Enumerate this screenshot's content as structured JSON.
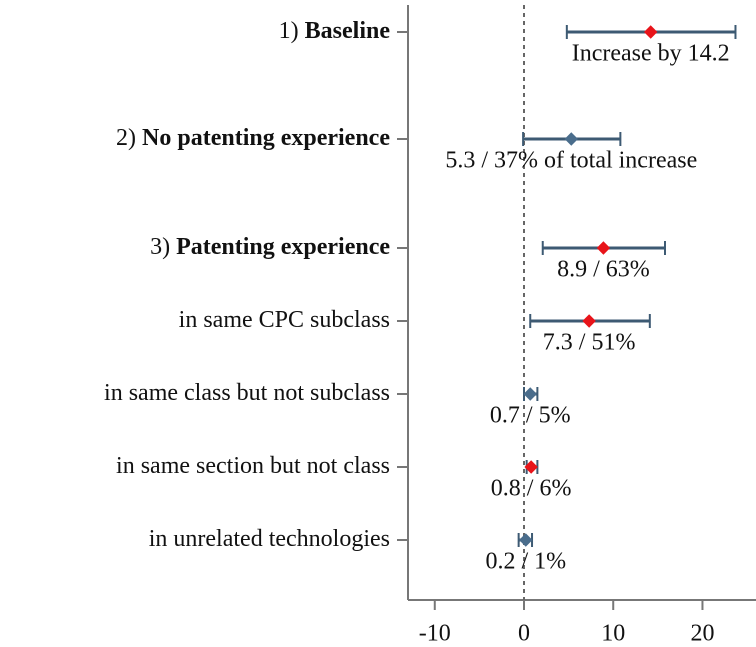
{
  "chart_data": {
    "type": "coefplot",
    "category_prefixes": [
      "1)",
      "2)",
      "3)",
      null,
      null,
      null,
      null
    ],
    "categories": [
      "Baseline",
      "No patenting experience",
      "Patenting experience",
      "in same CPC subclass",
      "in same class but not subclass",
      "in same section but not class",
      "in unrelated technologies"
    ],
    "values": [
      14.2,
      5.3,
      8.9,
      7.3,
      0.7,
      0.8,
      0.2
    ],
    "lower": [
      4.8,
      -0.1,
      2.1,
      0.7,
      0.0,
      0.3,
      -0.6
    ],
    "upper": [
      23.7,
      10.8,
      15.8,
      14.1,
      1.5,
      1.5,
      0.9
    ],
    "value_labels": [
      "Increase by 14.2",
      "5.3 / 37% of total increase",
      "8.9 / 63%",
      "7.3 / 51%",
      "0.7 / 5%",
      "0.8 / 6%",
      "0.2 / 1%"
    ],
    "point_colors": [
      "#e8141a",
      "#4a6d8c",
      "#e8141a",
      "#e8141a",
      "#4a6d8c",
      "#e8141a",
      "#4a6d8c"
    ],
    "ci_color": "#3d5a73",
    "xlim": [
      -13,
      26
    ],
    "xticks": [
      -10,
      0,
      10,
      20
    ],
    "reference_line": 0
  }
}
